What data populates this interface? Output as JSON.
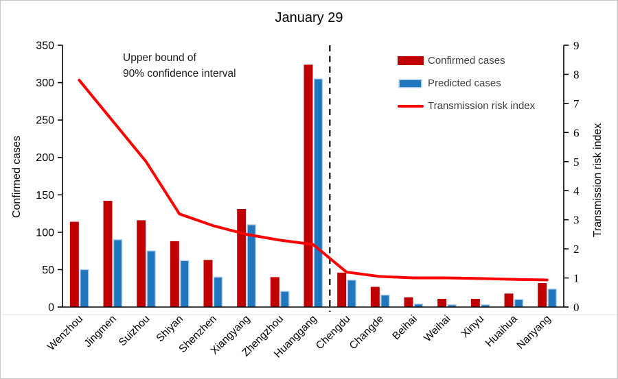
{
  "title": "January 29",
  "left_axis_label": "Confirmed cases",
  "right_axis_label": "Transmission risk index",
  "annotation": {
    "line1": "Upper bound of",
    "line2": "90% confidence interval"
  },
  "legend": {
    "items": [
      {
        "label": "Confirmed cases"
      },
      {
        "label": "Predicted cases"
      },
      {
        "label": "Transmission risk index"
      }
    ]
  },
  "chart_data": {
    "type": "bar",
    "title": "January 29",
    "categories": [
      "Wenzhou",
      "Jingmen",
      "Suizhou",
      "Shiyan",
      "Shenzhen",
      "Xiangyang",
      "Zhengzhou",
      "Huanggang",
      "Chengdu",
      "Changde",
      "Beihai",
      "Weihai",
      "Xinyu",
      "Huaihua",
      "Nanyang"
    ],
    "series": [
      {
        "name": "Confirmed cases",
        "type": "bar",
        "axis": "left",
        "color": "#C00000",
        "values": [
          114,
          142,
          116,
          88,
          63,
          131,
          40,
          324,
          46,
          27,
          13,
          11,
          11,
          18,
          32
        ]
      },
      {
        "name": "Predicted cases",
        "type": "bar",
        "axis": "left",
        "color": "#2077BE",
        "border_color": "#AECBEA",
        "values": [
          50,
          90,
          75,
          62,
          40,
          110,
          21,
          305,
          36,
          16,
          4,
          3,
          3,
          10,
          24
        ]
      },
      {
        "name": "Transmission risk index",
        "type": "line",
        "axis": "right",
        "color": "#FF0000",
        "values": [
          7.8,
          6.4,
          5.0,
          3.2,
          2.8,
          2.5,
          2.3,
          2.15,
          1.2,
          1.05,
          1.0,
          1.0,
          0.98,
          0.95,
          0.93
        ]
      }
    ],
    "left_axis": {
      "label": "Confirmed cases",
      "min": 0,
      "max": 350,
      "step": 50
    },
    "right_axis": {
      "label": "Transmission risk index",
      "min": 0,
      "max": 9,
      "step": 1
    },
    "separator_after_index": 8,
    "annotation": "Upper bound of 90% confidence interval",
    "legend_position": "top-right",
    "grid": false
  }
}
